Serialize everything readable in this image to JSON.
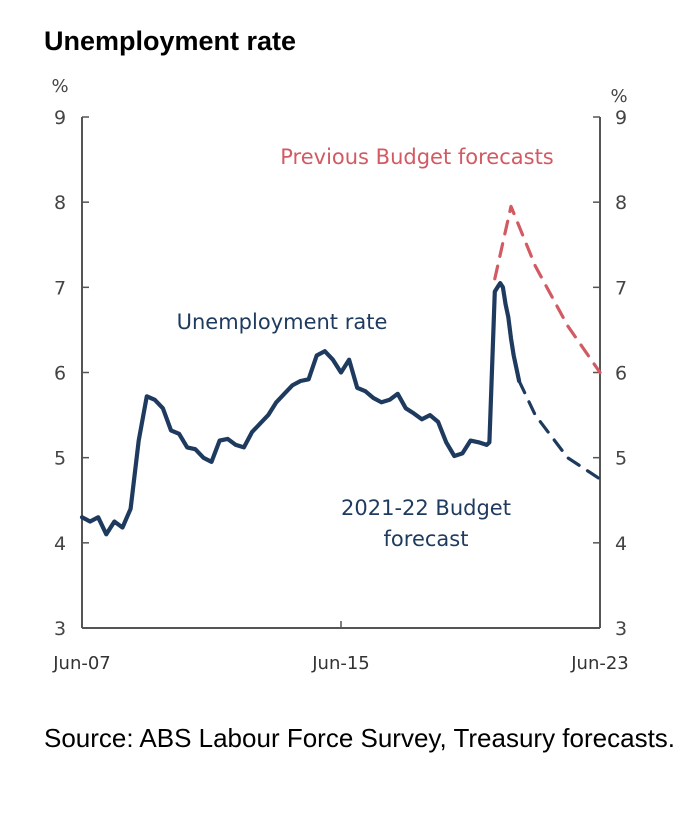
{
  "title": "Unemployment rate",
  "source": "Source: ABS Labour Force Survey, Treasury forecasts.",
  "chart_data": {
    "type": "line",
    "title": "Unemployment rate",
    "unit_left": "%",
    "unit_right": "%",
    "ylim": [
      3,
      9
    ],
    "yticks": [
      3,
      4,
      5,
      6,
      7,
      8,
      9
    ],
    "xlim": [
      "2007-06",
      "2023-06"
    ],
    "xticks": [
      "Jun-07",
      "Jun-15",
      "Jun-23"
    ],
    "grid": false,
    "colors": {
      "actual": "#1f3a5f",
      "budget_forecast": "#1f3a5f",
      "previous_forecast": "#d25a62",
      "axis": "#555555"
    },
    "annotations": {
      "previous": "Previous Budget forecasts",
      "actual": "Unemployment rate",
      "budget_line1": "2021-22 Budget",
      "budget_line2": "forecast"
    },
    "series": [
      {
        "name": "Unemployment rate",
        "style": "solid",
        "color": "#1f3a5f",
        "x": [
          "2007-06",
          "2007-09",
          "2007-12",
          "2008-03",
          "2008-06",
          "2008-09",
          "2008-12",
          "2009-03",
          "2009-06",
          "2009-09",
          "2009-12",
          "2010-03",
          "2010-06",
          "2010-09",
          "2010-12",
          "2011-03",
          "2011-06",
          "2011-09",
          "2011-12",
          "2012-03",
          "2012-06",
          "2012-09",
          "2012-12",
          "2013-03",
          "2013-06",
          "2013-09",
          "2013-12",
          "2014-03",
          "2014-06",
          "2014-09",
          "2014-12",
          "2015-03",
          "2015-06",
          "2015-09",
          "2015-12",
          "2016-03",
          "2016-06",
          "2016-09",
          "2016-12",
          "2017-03",
          "2017-06",
          "2017-09",
          "2017-12",
          "2018-03",
          "2018-06",
          "2018-09",
          "2018-12",
          "2019-03",
          "2019-06",
          "2019-09",
          "2019-12",
          "2020-01",
          "2020-03",
          "2020-04",
          "2020-05",
          "2020-06",
          "2020-07",
          "2020-08",
          "2020-09",
          "2020-10",
          "2020-11",
          "2020-12"
        ],
        "values": [
          4.3,
          4.25,
          4.3,
          4.1,
          4.25,
          4.18,
          4.4,
          5.2,
          5.72,
          5.68,
          5.58,
          5.32,
          5.28,
          5.12,
          5.1,
          5.0,
          4.95,
          5.2,
          5.22,
          5.15,
          5.12,
          5.3,
          5.4,
          5.5,
          5.65,
          5.75,
          5.85,
          5.9,
          5.92,
          6.2,
          6.25,
          6.15,
          6.0,
          6.15,
          5.82,
          5.78,
          5.7,
          5.65,
          5.68,
          5.75,
          5.58,
          5.52,
          5.45,
          5.5,
          5.42,
          5.18,
          5.02,
          5.05,
          5.2,
          5.18,
          5.15,
          5.18,
          6.95,
          7.0,
          7.05,
          7.0,
          6.8,
          6.65,
          6.4,
          6.2,
          6.05,
          5.9
        ]
      },
      {
        "name": "2021-22 Budget forecast",
        "style": "dashed",
        "color": "#1f3a5f",
        "x": [
          "2020-12",
          "2021-06",
          "2022-06",
          "2023-06"
        ],
        "values": [
          5.9,
          5.5,
          5.0,
          4.75
        ]
      },
      {
        "name": "Previous Budget forecasts",
        "style": "dashed",
        "color": "#d25a62",
        "x": [
          "2020-03",
          "2020-09",
          "2021-06",
          "2022-06",
          "2023-06"
        ],
        "values": [
          7.1,
          7.95,
          7.25,
          6.55,
          6.0
        ]
      }
    ]
  }
}
